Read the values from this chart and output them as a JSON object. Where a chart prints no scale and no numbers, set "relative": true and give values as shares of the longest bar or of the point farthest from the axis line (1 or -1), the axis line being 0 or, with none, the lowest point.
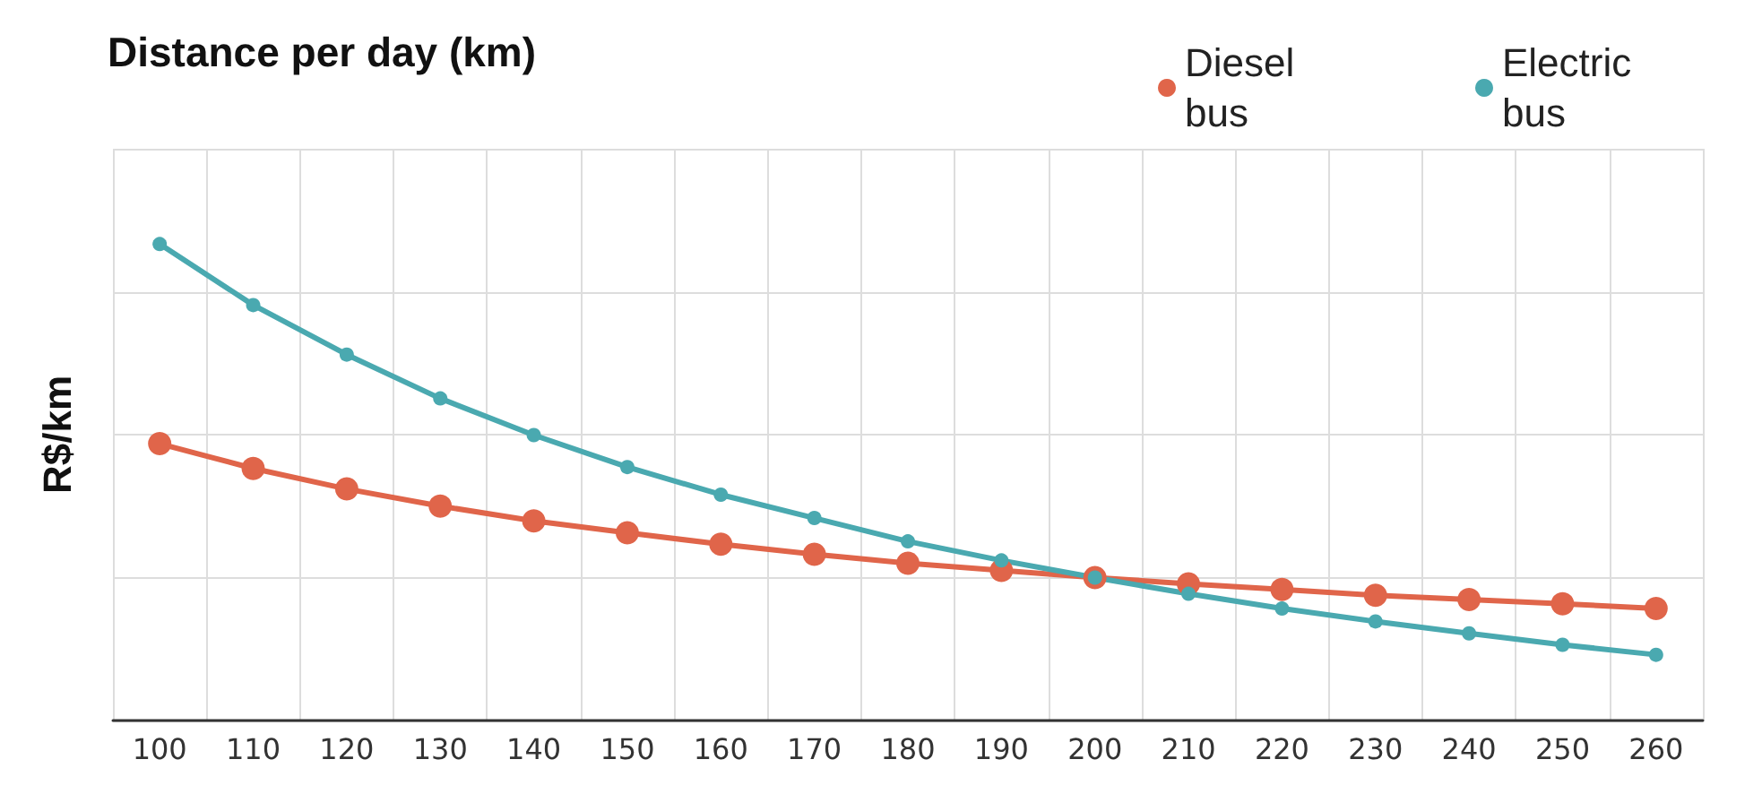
{
  "chart_data": {
    "type": "line",
    "xlabel": "Distance per day (km)",
    "ylabel": "R$/km",
    "relative": true,
    "grid": true,
    "legend": "top right",
    "marker": "circle",
    "line_style": "solid",
    "categories": [
      "100",
      "110",
      "120",
      "130",
      "140",
      "150",
      "160",
      "170",
      "180",
      "190",
      "200",
      "210",
      "220",
      "230",
      "240",
      "250",
      "260"
    ],
    "series": [
      {
        "name": "Diesel bus",
        "color": "#e0654a",
        "values": [
          0.581,
          0.529,
          0.486,
          0.45,
          0.419,
          0.394,
          0.37,
          0.349,
          0.33,
          0.315,
          0.3,
          0.287,
          0.275,
          0.263,
          0.254,
          0.245,
          0.235
        ]
      },
      {
        "name": "Electric bus",
        "color": "#4aa9b0",
        "values": [
          1.0,
          0.872,
          0.768,
          0.676,
          0.599,
          0.532,
          0.474,
          0.425,
          0.376,
          0.336,
          0.3,
          0.266,
          0.235,
          0.208,
          0.183,
          0.159,
          0.138
        ]
      }
    ]
  }
}
